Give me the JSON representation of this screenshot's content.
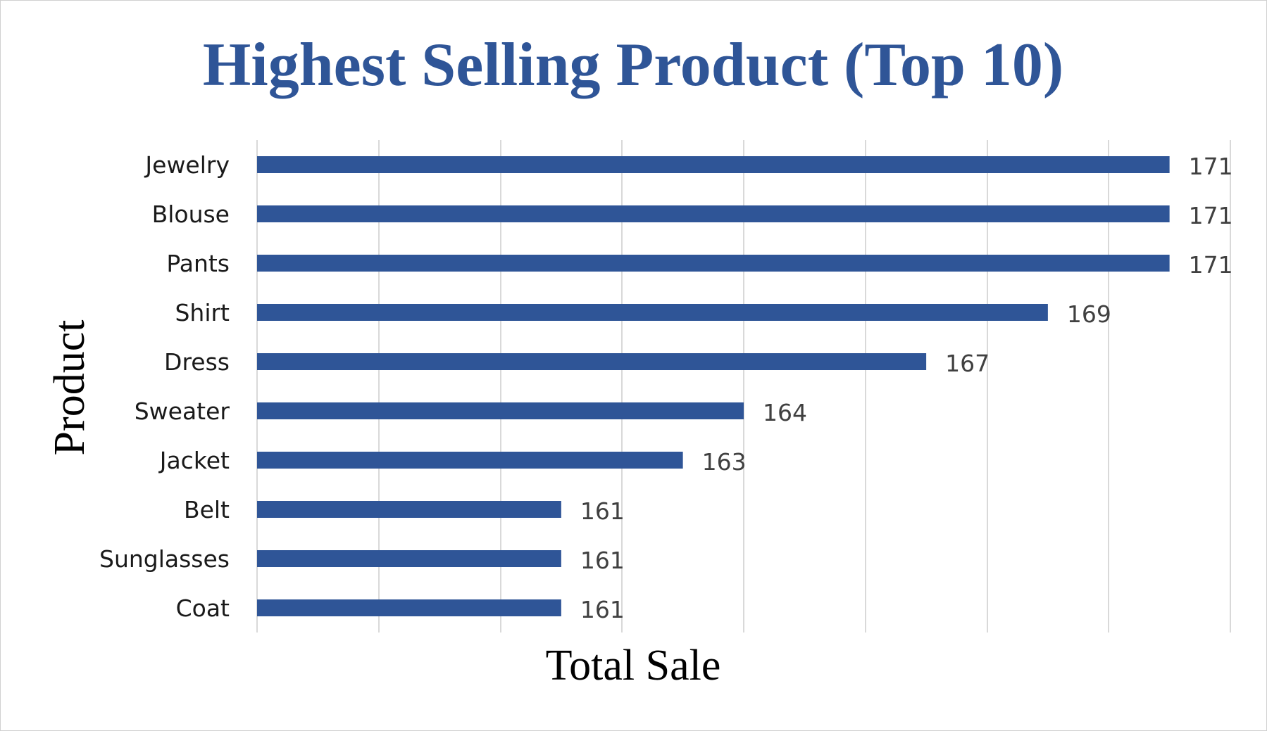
{
  "chart_data": {
    "type": "bar",
    "orientation": "horizontal",
    "title": "Highest Selling Product (Top 10)",
    "xlabel": "Total Sale",
    "ylabel": "Product",
    "categories": [
      "Jewelry",
      "Blouse",
      "Pants",
      "Shirt",
      "Dress",
      "Sweater",
      "Jacket",
      "Belt",
      "Sunglasses",
      "Coat"
    ],
    "values": [
      171,
      171,
      171,
      169,
      167,
      164,
      163,
      161,
      161,
      161
    ],
    "xlim": [
      156,
      172
    ],
    "x_tick_step": 2,
    "x_tick_labels_shown": false,
    "grid": "vertical",
    "legend": "none",
    "bar_color": "#2f5597",
    "title_color": "#2f5597"
  }
}
